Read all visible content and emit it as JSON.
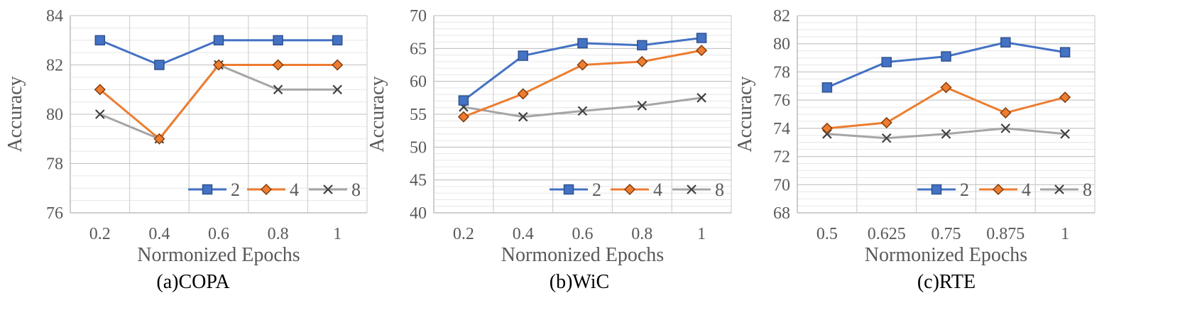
{
  "chart_data": [
    {
      "type": "line",
      "caption": "(a)COPA",
      "xlabel": "Normonized Epochs",
      "ylabel": "Accuracy",
      "categories": [
        "0.2",
        "0.4",
        "0.6",
        "0.8",
        "1"
      ],
      "ylim": [
        76,
        84
      ],
      "y_ticks": [
        "76",
        "78",
        "80",
        "82",
        "84"
      ],
      "y_minor_step": 0.5,
      "grid": true,
      "legend": "bottom-right",
      "series": [
        {
          "name": "2",
          "marker": "square",
          "color": "#4472C4",
          "values": [
            83,
            82,
            83,
            83,
            83
          ]
        },
        {
          "name": "4",
          "marker": "diamond",
          "color": "#ED7D31",
          "values": [
            81,
            79,
            82,
            82,
            82
          ]
        },
        {
          "name": "8",
          "marker": "x",
          "color": "#A5A5A5",
          "values": [
            80,
            79,
            82,
            81,
            81
          ]
        }
      ]
    },
    {
      "type": "line",
      "caption": "(b)WiC",
      "xlabel": "Normonized Epochs",
      "ylabel": "Accuracy",
      "categories": [
        "0.2",
        "0.4",
        "0.6",
        "0.8",
        "1"
      ],
      "ylim": [
        40,
        70
      ],
      "y_ticks": [
        "40",
        "45",
        "50",
        "55",
        "60",
        "65",
        "70"
      ],
      "y_minor_step": 1,
      "grid": true,
      "legend": "bottom-right",
      "series": [
        {
          "name": "2",
          "marker": "square",
          "color": "#4472C4",
          "values": [
            57.1,
            63.9,
            65.8,
            65.5,
            66.6
          ]
        },
        {
          "name": "4",
          "marker": "diamond",
          "color": "#ED7D31",
          "values": [
            54.6,
            58.1,
            62.5,
            63.0,
            64.7
          ]
        },
        {
          "name": "8",
          "marker": "x",
          "color": "#A5A5A5",
          "values": [
            56.1,
            54.6,
            55.5,
            56.3,
            57.5
          ]
        }
      ]
    },
    {
      "type": "line",
      "caption": "(c)RTE",
      "xlabel": "Normonized Epochs",
      "ylabel": "Accuracy",
      "categories": [
        "0.5",
        "0.625",
        "0.75",
        "0.875",
        "1"
      ],
      "ylim": [
        68,
        82
      ],
      "y_ticks": [
        "68",
        "70",
        "72",
        "74",
        "76",
        "78",
        "80",
        "82"
      ],
      "y_minor_step": 0.5,
      "grid": true,
      "legend": "bottom-right",
      "series": [
        {
          "name": "2",
          "marker": "square",
          "color": "#4472C4",
          "values": [
            76.9,
            78.7,
            79.1,
            80.1,
            79.4
          ]
        },
        {
          "name": "4",
          "marker": "diamond",
          "color": "#ED7D31",
          "values": [
            74.0,
            74.4,
            76.9,
            75.1,
            76.2
          ]
        },
        {
          "name": "8",
          "marker": "x",
          "color": "#A5A5A5",
          "values": [
            73.6,
            73.3,
            73.6,
            74.0,
            73.6
          ]
        }
      ]
    }
  ]
}
